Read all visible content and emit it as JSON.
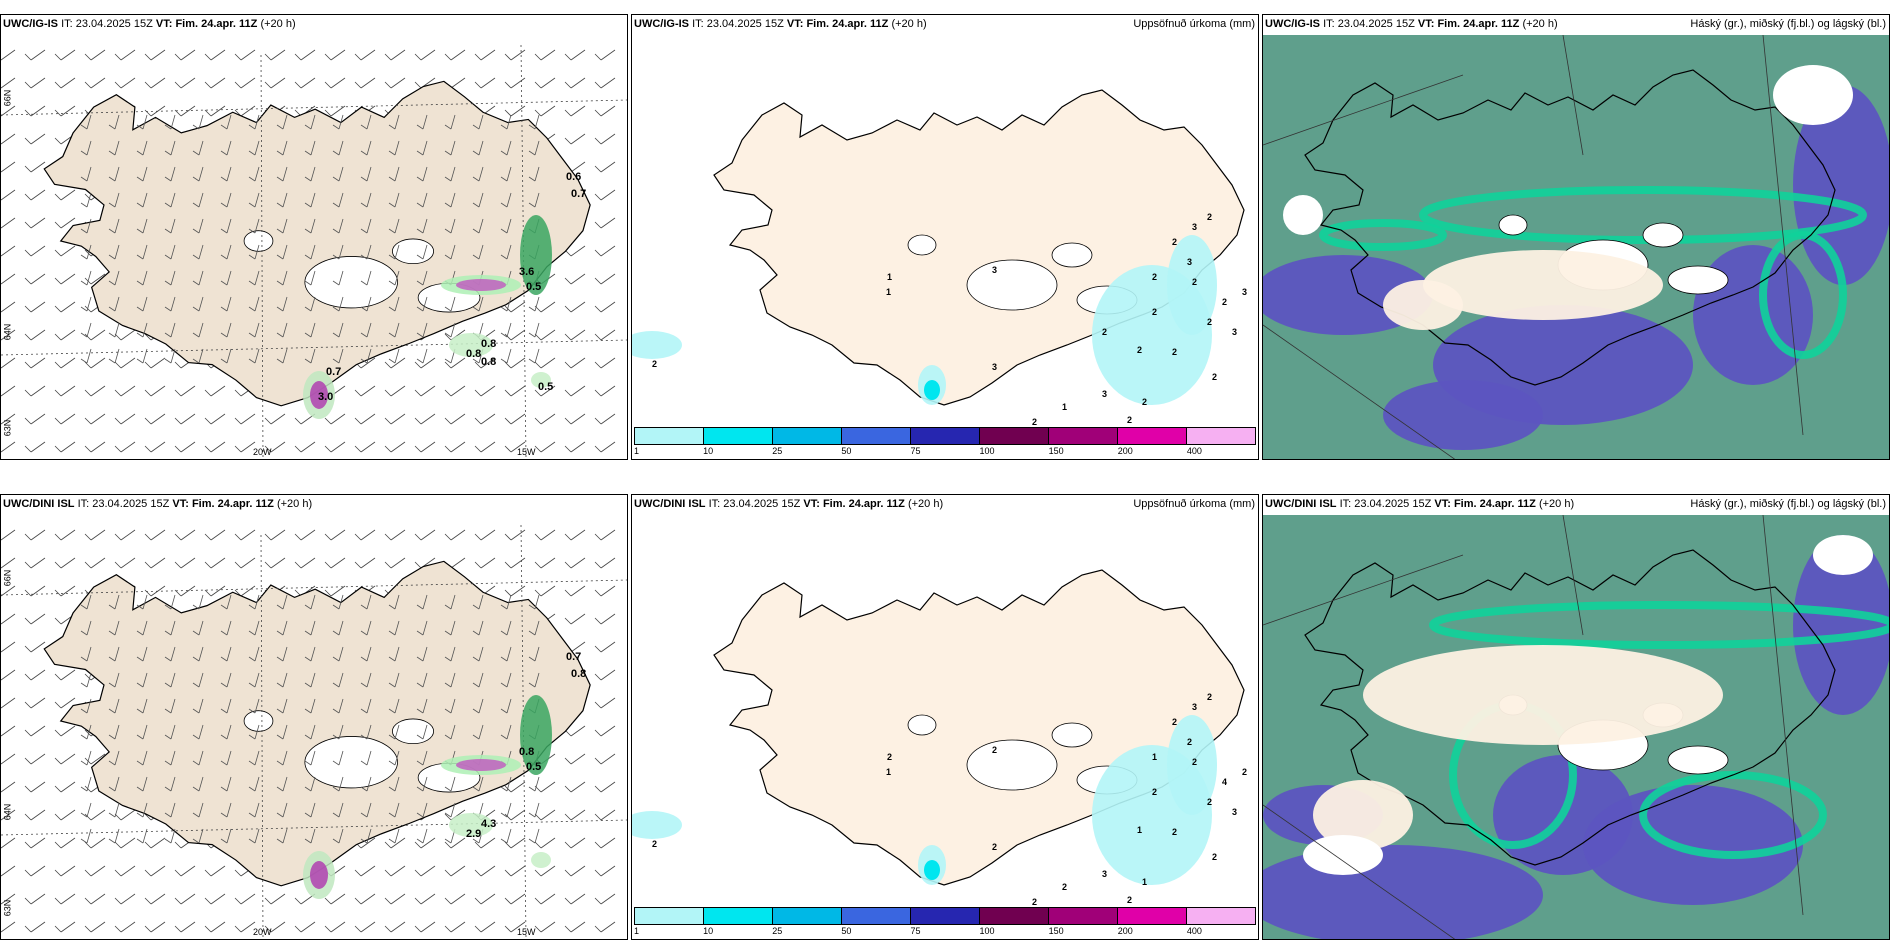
{
  "panels": [
    {
      "id": "r1-wind",
      "model": "UWC/IG-IS",
      "it_label": "IT:",
      "it": "23.04.2025 15Z",
      "vt_label": "VT:",
      "vt": "Fim. 24.apr. 11Z",
      "lead": "(+20 h)",
      "right_title": ""
    },
    {
      "id": "r1-precip",
      "model": "UWC/IG-IS",
      "it_label": "IT:",
      "it": "23.04.2025 15Z",
      "vt_label": "VT:",
      "vt": "Fim. 24.apr. 11Z",
      "lead": "(+20 h)",
      "right_title": "Uppsöfnuð úrkoma (mm)"
    },
    {
      "id": "r1-cloud",
      "model": "UWC/IG-IS",
      "it_label": "IT:",
      "it": "23.04.2025 15Z",
      "vt_label": "VT:",
      "vt": "Fim. 24.apr. 11Z",
      "lead": "(+20 h)",
      "right_title": "Háský (gr.), miðský (fj.bl.) og lágský (bl.)"
    },
    {
      "id": "r2-wind",
      "model": "UWC/DINI ISL",
      "it_label": "IT:",
      "it": "23.04.2025 15Z",
      "vt_label": "VT:",
      "vt": "Fim. 24.apr. 11Z",
      "lead": "(+20 h)",
      "right_title": ""
    },
    {
      "id": "r2-precip",
      "model": "UWC/DINI ISL",
      "it_label": "IT:",
      "it": "23.04.2025 15Z",
      "vt_label": "VT:",
      "vt": "Fim. 24.apr. 11Z",
      "lead": "(+20 h)",
      "right_title": "Uppsöfnuð úrkoma (mm)"
    },
    {
      "id": "r2-cloud",
      "model": "UWC/DINI ISL",
      "it_label": "IT:",
      "it": "23.04.2025 15Z",
      "vt_label": "VT:",
      "vt": "Fim. 24.apr. 11Z",
      "lead": "(+20 h)",
      "right_title": "Háský (gr.), miðský (fj.bl.) og lágský (bl.)"
    }
  ],
  "grid_labels": {
    "lon_20w": "20W",
    "lon_15w": "15W",
    "lat_66n": "66N",
    "lat_64n": "64N",
    "lat_63n": "63N"
  },
  "precip_scale": {
    "ticks": [
      "1",
      "10",
      "25",
      "50",
      "75",
      "100",
      "150",
      "200",
      "400"
    ],
    "colors": [
      "#b2f5f7",
      "#00e6ef",
      "#00b8e6",
      "#3a66e0",
      "#2626b0",
      "#700050",
      "#a00078",
      "#e000a8",
      "#f6b0f2"
    ]
  },
  "precip_labels_top": [
    "2",
    "1",
    "1",
    "3",
    "3",
    "2",
    "3",
    "2",
    "2",
    "2",
    "2",
    "2",
    "2",
    "2",
    "1",
    "2",
    "3",
    "3",
    "2",
    "3",
    "2",
    "2",
    "3",
    "2",
    "2",
    "2"
  ],
  "precip_labels_bottom": [
    "2",
    "2",
    "1",
    "2",
    "2",
    "2",
    "2",
    "2",
    "2",
    "2",
    "2",
    "1",
    "2",
    "2",
    "2",
    "4",
    "2",
    "3",
    "2",
    "3",
    "2",
    "1",
    "3",
    "2",
    "1"
  ],
  "wind_labels_top": [
    "0.6",
    "0.7",
    "3.6",
    "0.5",
    "0.8",
    "0.8",
    "0.8",
    "0.5",
    "0.7",
    "3.0"
  ],
  "wind_labels_bottom": [
    "0.7",
    "0.8",
    "0.8",
    "0.5",
    "4.3",
    "2.9"
  ],
  "colors": {
    "land": "#efe3d3",
    "precip_land": "#fdf1e3",
    "cloud_high": "#5f9f8c",
    "cloud_mid": "#5c55c0",
    "cloud_low": "#0fd19a",
    "sea": "#ffffff"
  }
}
